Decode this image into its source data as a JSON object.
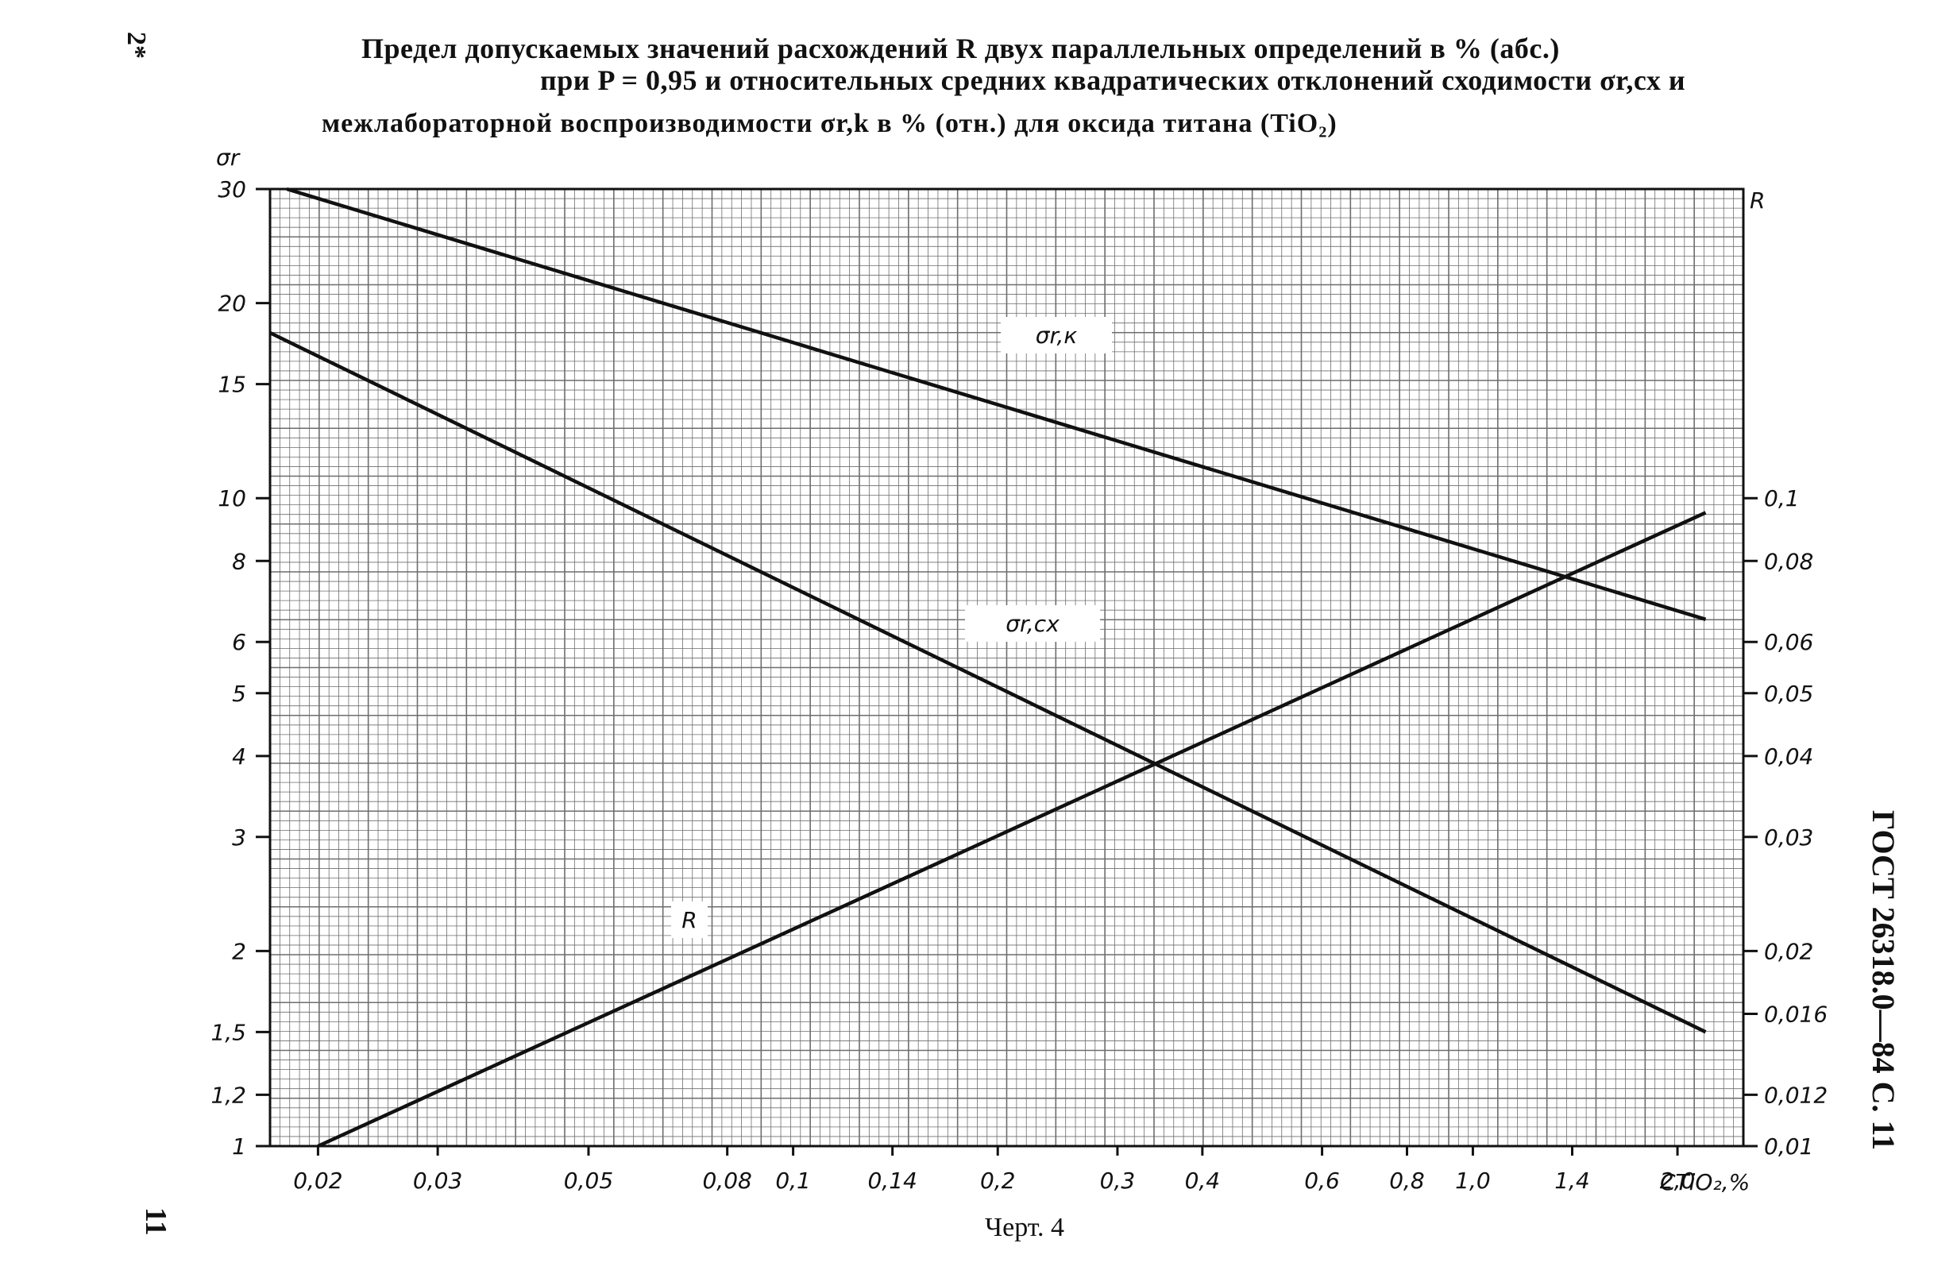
{
  "page": {
    "corner_mark": "2*",
    "page_number": "11",
    "side_label": "ГОСТ 26318.0—84 С. 11",
    "caption": "Черт. 4"
  },
  "title": {
    "line1": "Предел допускаемых значений расхождений R двух параллельных определений в % (абс.)",
    "line2": "при P = 0,95 и относительных средних квадратических отклонений сходимости σr,сх и",
    "line3": "межлабораторной воспроизводимости σr,k в % (отн.) для оксида титана (TiO₂)"
  },
  "chart_data": {
    "type": "line",
    "x_scale": "log",
    "y_scale": "log",
    "y2_scale": "log",
    "grid": true,
    "xlim": [
      0.017,
      2.5
    ],
    "ylim": [
      1,
      30
    ],
    "y2lim": [
      0.01,
      0.3
    ],
    "xlabel": "CTiO₂,%",
    "ylabel": "σr",
    "y2label": "R",
    "x_ticks": [
      {
        "v": 0.02,
        "t": "0,02"
      },
      {
        "v": 0.03,
        "t": "0,03"
      },
      {
        "v": 0.05,
        "t": "0,05"
      },
      {
        "v": 0.08,
        "t": "0,08"
      },
      {
        "v": 0.1,
        "t": "0,1"
      },
      {
        "v": 0.14,
        "t": "0,14"
      },
      {
        "v": 0.2,
        "t": "0,2"
      },
      {
        "v": 0.3,
        "t": "0,3"
      },
      {
        "v": 0.4,
        "t": "0,4"
      },
      {
        "v": 0.6,
        "t": "0,6"
      },
      {
        "v": 0.8,
        "t": "0,8"
      },
      {
        "v": 1.0,
        "t": "1,0"
      },
      {
        "v": 1.4,
        "t": "1,4"
      },
      {
        "v": 2.0,
        "t": "2,0"
      }
    ],
    "y_ticks": [
      {
        "v": 1,
        "t": "1"
      },
      {
        "v": 1.2,
        "t": "1,2"
      },
      {
        "v": 1.5,
        "t": "1,5"
      },
      {
        "v": 2,
        "t": "2"
      },
      {
        "v": 3,
        "t": "3"
      },
      {
        "v": 4,
        "t": "4"
      },
      {
        "v": 5,
        "t": "5"
      },
      {
        "v": 6,
        "t": "6"
      },
      {
        "v": 8,
        "t": "8"
      },
      {
        "v": 10,
        "t": "10"
      },
      {
        "v": 15,
        "t": "15"
      },
      {
        "v": 20,
        "t": "20"
      },
      {
        "v": 30,
        "t": "30"
      }
    ],
    "y2_ticks": [
      {
        "v": 0.01,
        "t": "0,01"
      },
      {
        "v": 0.012,
        "t": "0,012"
      },
      {
        "v": 0.016,
        "t": "0,016"
      },
      {
        "v": 0.02,
        "t": "0,02"
      },
      {
        "v": 0.03,
        "t": "0,03"
      },
      {
        "v": 0.04,
        "t": "0,04"
      },
      {
        "v": 0.05,
        "t": "0,05"
      },
      {
        "v": 0.06,
        "t": "0,06"
      },
      {
        "v": 0.08,
        "t": "0,08"
      },
      {
        "v": 0.1,
        "t": "0,1"
      }
    ],
    "series": [
      {
        "name": "σr,к",
        "axis": "left",
        "x": [
          0.018,
          2.2
        ],
        "y": [
          30,
          6.5
        ]
      },
      {
        "name": "σr,сх",
        "axis": "left",
        "x": [
          0.017,
          2.2
        ],
        "y": [
          18,
          1.5
        ]
      },
      {
        "name": "R",
        "axis": "right",
        "x": [
          0.02,
          2.2
        ],
        "y": [
          0.01,
          0.095
        ]
      }
    ]
  }
}
